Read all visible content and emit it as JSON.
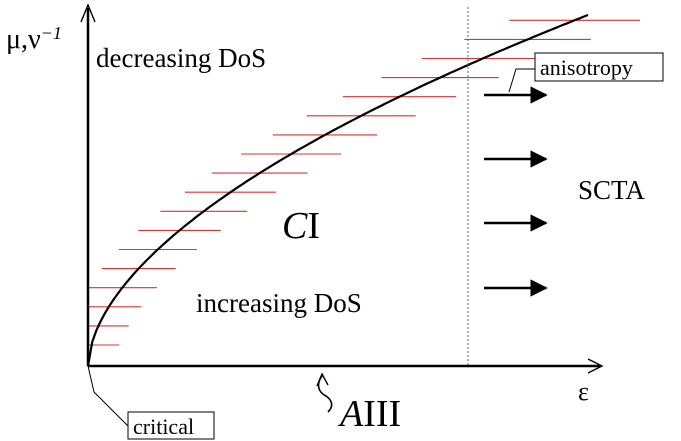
{
  "axes": {
    "y_label": "μ,ν",
    "y_label_sup": "−1",
    "x_label": "ε"
  },
  "regions": {
    "top": "decreasing DoS",
    "center_italic": "C",
    "center_roman": "I",
    "bottom": "increasing DoS",
    "right": "SCTA"
  },
  "annotations": {
    "anisotropy": "anisotropy",
    "critical": "critical",
    "aiii_italic": "A",
    "aiii_roman": "III"
  },
  "colors": {
    "curve": "#000000",
    "ticks": "#e03030",
    "divider": "#666666"
  }
}
